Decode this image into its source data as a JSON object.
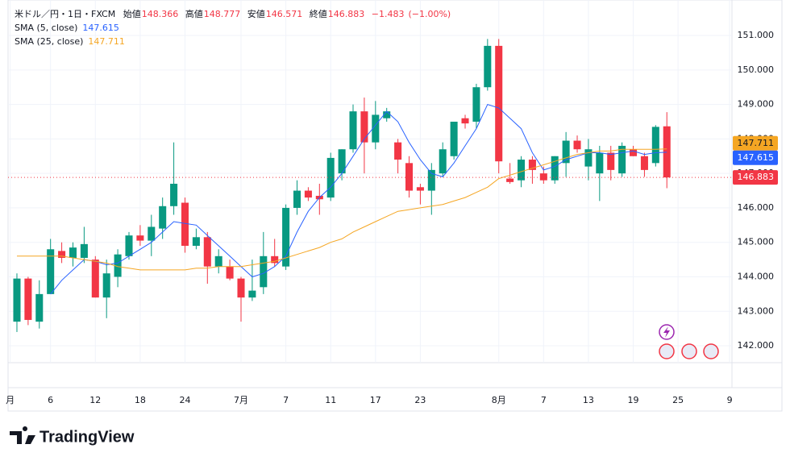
{
  "header": {
    "symbol": "米ドル／円・1日・FXCM",
    "open_label": "始値",
    "open": 148.366,
    "high_label": "高値",
    "high": 148.777,
    "low_label": "安値",
    "low": 146.571,
    "close_label": "終値",
    "close": 146.883,
    "change": {
      "value": -1.483,
      "label": "−1.483"
    },
    "change_percent": {
      "value": -1.0,
      "label": "(−1.00%)"
    }
  },
  "chart_data": {
    "type": "candlestick",
    "up_color": "#089981",
    "down_color": "#f23645",
    "open": [
      142.7,
      143.95,
      142.7,
      143.5,
      144.75,
      144.55,
      144.55,
      144.5,
      143.4,
      144.0,
      144.6,
      145.2,
      145.05,
      145.4,
      146.05,
      146.15,
      144.9,
      145.15,
      144.3,
      144.3,
      143.95,
      143.4,
      143.7,
      144.6,
      144.3,
      146.0,
      146.5,
      146.35,
      146.3,
      147.0,
      147.7,
      148.8,
      147.9,
      148.6,
      147.9,
      147.3,
      146.6,
      146.5,
      147.0,
      147.5,
      148.6,
      148.5,
      149.5,
      150.7,
      146.85,
      146.8,
      147.4,
      147.0,
      146.8,
      147.3,
      147.95,
      147.2,
      147.0,
      147.6,
      147.0,
      147.7,
      147.5,
      147.3,
      148.366
    ],
    "high": [
      144.1,
      144.0,
      143.9,
      145.1,
      145.0,
      145.0,
      145.45,
      144.6,
      144.5,
      144.8,
      145.3,
      145.5,
      145.8,
      146.3,
      147.9,
      146.3,
      145.4,
      145.3,
      144.8,
      144.5,
      144.0,
      144.5,
      145.3,
      145.1,
      146.1,
      146.8,
      146.6,
      146.7,
      147.6,
      147.7,
      149.0,
      149.2,
      149.1,
      148.9,
      148.0,
      147.5,
      146.7,
      147.3,
      147.9,
      148.5,
      148.7,
      149.6,
      150.9,
      150.9,
      147.3,
      147.5,
      147.5,
      147.2,
      147.5,
      148.2,
      148.1,
      148.0,
      147.8,
      147.8,
      147.9,
      147.8,
      147.6,
      148.4,
      148.777
    ],
    "low": [
      142.4,
      142.6,
      142.5,
      143.5,
      144.4,
      144.3,
      144.4,
      143.4,
      142.8,
      143.7,
      144.5,
      144.9,
      144.6,
      145.1,
      145.8,
      144.7,
      144.8,
      143.8,
      144.1,
      143.9,
      142.7,
      143.3,
      143.5,
      144.3,
      144.2,
      145.8,
      146.2,
      145.8,
      146.2,
      146.8,
      147.6,
      147.0,
      147.7,
      148.5,
      147.0,
      146.3,
      146.1,
      145.8,
      146.9,
      147.4,
      148.3,
      148.3,
      149.4,
      147.0,
      146.7,
      146.6,
      146.7,
      146.7,
      146.7,
      146.9,
      147.6,
      146.8,
      146.2,
      146.8,
      146.9,
      147.5,
      146.9,
      147.2,
      146.571
    ],
    "close": [
      143.95,
      142.75,
      143.5,
      144.8,
      144.55,
      144.85,
      144.95,
      143.4,
      144.1,
      144.65,
      145.2,
      145.05,
      145.45,
      146.05,
      146.7,
      144.9,
      145.15,
      144.3,
      144.6,
      143.95,
      143.4,
      143.6,
      144.6,
      144.4,
      146.0,
      146.5,
      146.3,
      146.25,
      147.45,
      147.7,
      148.8,
      147.9,
      148.7,
      148.8,
      147.4,
      146.5,
      146.5,
      147.1,
      147.7,
      148.5,
      148.45,
      149.5,
      150.7,
      147.35,
      146.75,
      147.4,
      147.1,
      146.8,
      147.5,
      147.95,
      147.7,
      147.7,
      147.6,
      147.1,
      147.8,
      147.5,
      147.1,
      148.35,
      146.883
    ],
    "indicators": [
      {
        "name": "SMA (5, close)",
        "color": "#2962ff",
        "values": [
          null,
          null,
          null,
          143.5,
          143.9,
          144.2,
          144.5,
          144.45,
          144.35,
          144.4,
          144.6,
          144.8,
          145.0,
          145.3,
          145.6,
          145.55,
          145.5,
          145.2,
          144.9,
          144.6,
          144.3,
          144.0,
          144.1,
          144.3,
          144.6,
          145.3,
          145.9,
          146.3,
          146.6,
          147.0,
          147.5,
          148.0,
          148.4,
          148.8,
          148.5,
          147.9,
          147.4,
          147.0,
          146.9,
          147.3,
          147.8,
          148.3,
          149.0,
          148.9,
          148.6,
          148.3,
          147.6,
          147.1,
          147.2,
          147.4,
          147.5,
          147.6,
          147.6,
          147.55,
          147.6,
          147.65,
          147.55,
          147.6,
          147.615
        ]
      },
      {
        "name": "SMA (25, close)",
        "color": "#f5a623",
        "values": [
          144.6,
          144.6,
          144.6,
          144.6,
          144.6,
          144.55,
          144.5,
          144.45,
          144.4,
          144.3,
          144.25,
          144.2,
          144.2,
          144.2,
          144.2,
          144.2,
          144.25,
          144.25,
          144.3,
          144.3,
          144.3,
          144.35,
          144.4,
          144.45,
          144.55,
          144.65,
          144.75,
          144.85,
          145.0,
          145.1,
          145.3,
          145.45,
          145.6,
          145.75,
          145.9,
          145.95,
          146.0,
          146.05,
          146.1,
          146.2,
          146.3,
          146.45,
          146.6,
          146.85,
          146.95,
          147.05,
          147.15,
          147.25,
          147.35,
          147.45,
          147.55,
          147.6,
          147.65,
          147.65,
          147.7,
          147.7,
          147.7,
          147.7,
          147.711
        ]
      }
    ],
    "ylim": [
      141.51,
      152.03
    ],
    "yticks": [
      {
        "value": 142,
        "label": "142.000"
      },
      {
        "value": 143,
        "label": "143.000"
      },
      {
        "value": 144,
        "label": "144.000"
      },
      {
        "value": 145,
        "label": "145.000"
      },
      {
        "value": 146,
        "label": "146.000"
      },
      {
        "value": 147,
        "label": "147.000"
      },
      {
        "value": 148,
        "label": "148.000"
      },
      {
        "value": 149,
        "label": "149.000"
      },
      {
        "value": 150,
        "label": "150.000"
      },
      {
        "value": 151,
        "label": "151.000"
      }
    ],
    "xlim": [
      -0.79,
      63.81
    ],
    "xticks": [
      {
        "value": -0.6,
        "label": "月"
      },
      {
        "value": 3,
        "label": "6"
      },
      {
        "value": 7,
        "label": "12"
      },
      {
        "value": 11,
        "label": "18"
      },
      {
        "value": 15,
        "label": "24"
      },
      {
        "value": 20,
        "label": "7月"
      },
      {
        "value": 24,
        "label": "7"
      },
      {
        "value": 28,
        "label": "11"
      },
      {
        "value": 32,
        "label": "17"
      },
      {
        "value": 36,
        "label": "23"
      },
      {
        "value": 43,
        "label": "8月"
      },
      {
        "value": 47,
        "label": "7"
      },
      {
        "value": 51,
        "label": "13"
      },
      {
        "value": 55,
        "label": "19"
      },
      {
        "value": 59,
        "label": "25"
      },
      {
        "value": 63.6,
        "label": "9"
      }
    ],
    "grid": true
  },
  "branding": "TradingView"
}
